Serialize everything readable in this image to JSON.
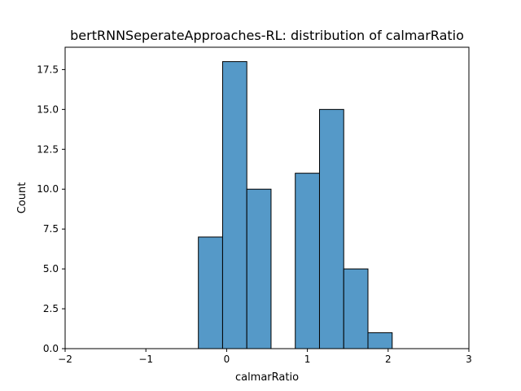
{
  "chart_data": {
    "type": "bar",
    "title": "bertRNNSeperateApproaches-RL: distribution of calmarRatio",
    "xlabel": "calmarRatio",
    "ylabel": "Count",
    "xlim": [
      -2,
      3
    ],
    "ylim": [
      0,
      18.9
    ],
    "xticks": [
      -2,
      -1,
      0,
      1,
      2,
      3
    ],
    "xtick_labels": [
      "−2",
      "−1",
      "0",
      "1",
      "2",
      "3"
    ],
    "yticks": [
      0,
      2.5,
      5,
      7.5,
      10,
      12.5,
      15,
      17.5
    ],
    "ytick_labels": [
      "0.0",
      "2.5",
      "5.0",
      "7.5",
      "10.0",
      "12.5",
      "15.0",
      "17.5"
    ],
    "grid": false,
    "bar_color": "#5599c8",
    "edge_color": "#000000",
    "bins": [
      {
        "x0": -0.35,
        "x1": -0.05,
        "count": 7
      },
      {
        "x0": -0.05,
        "x1": 0.25,
        "count": 18
      },
      {
        "x0": 0.25,
        "x1": 0.55,
        "count": 10
      },
      {
        "x0": 0.55,
        "x1": 0.85,
        "count": 0
      },
      {
        "x0": 0.85,
        "x1": 1.15,
        "count": 11
      },
      {
        "x0": 1.15,
        "x1": 1.45,
        "count": 15
      },
      {
        "x0": 1.45,
        "x1": 1.75,
        "count": 5
      },
      {
        "x0": 1.75,
        "x1": 2.05,
        "count": 1
      }
    ]
  }
}
